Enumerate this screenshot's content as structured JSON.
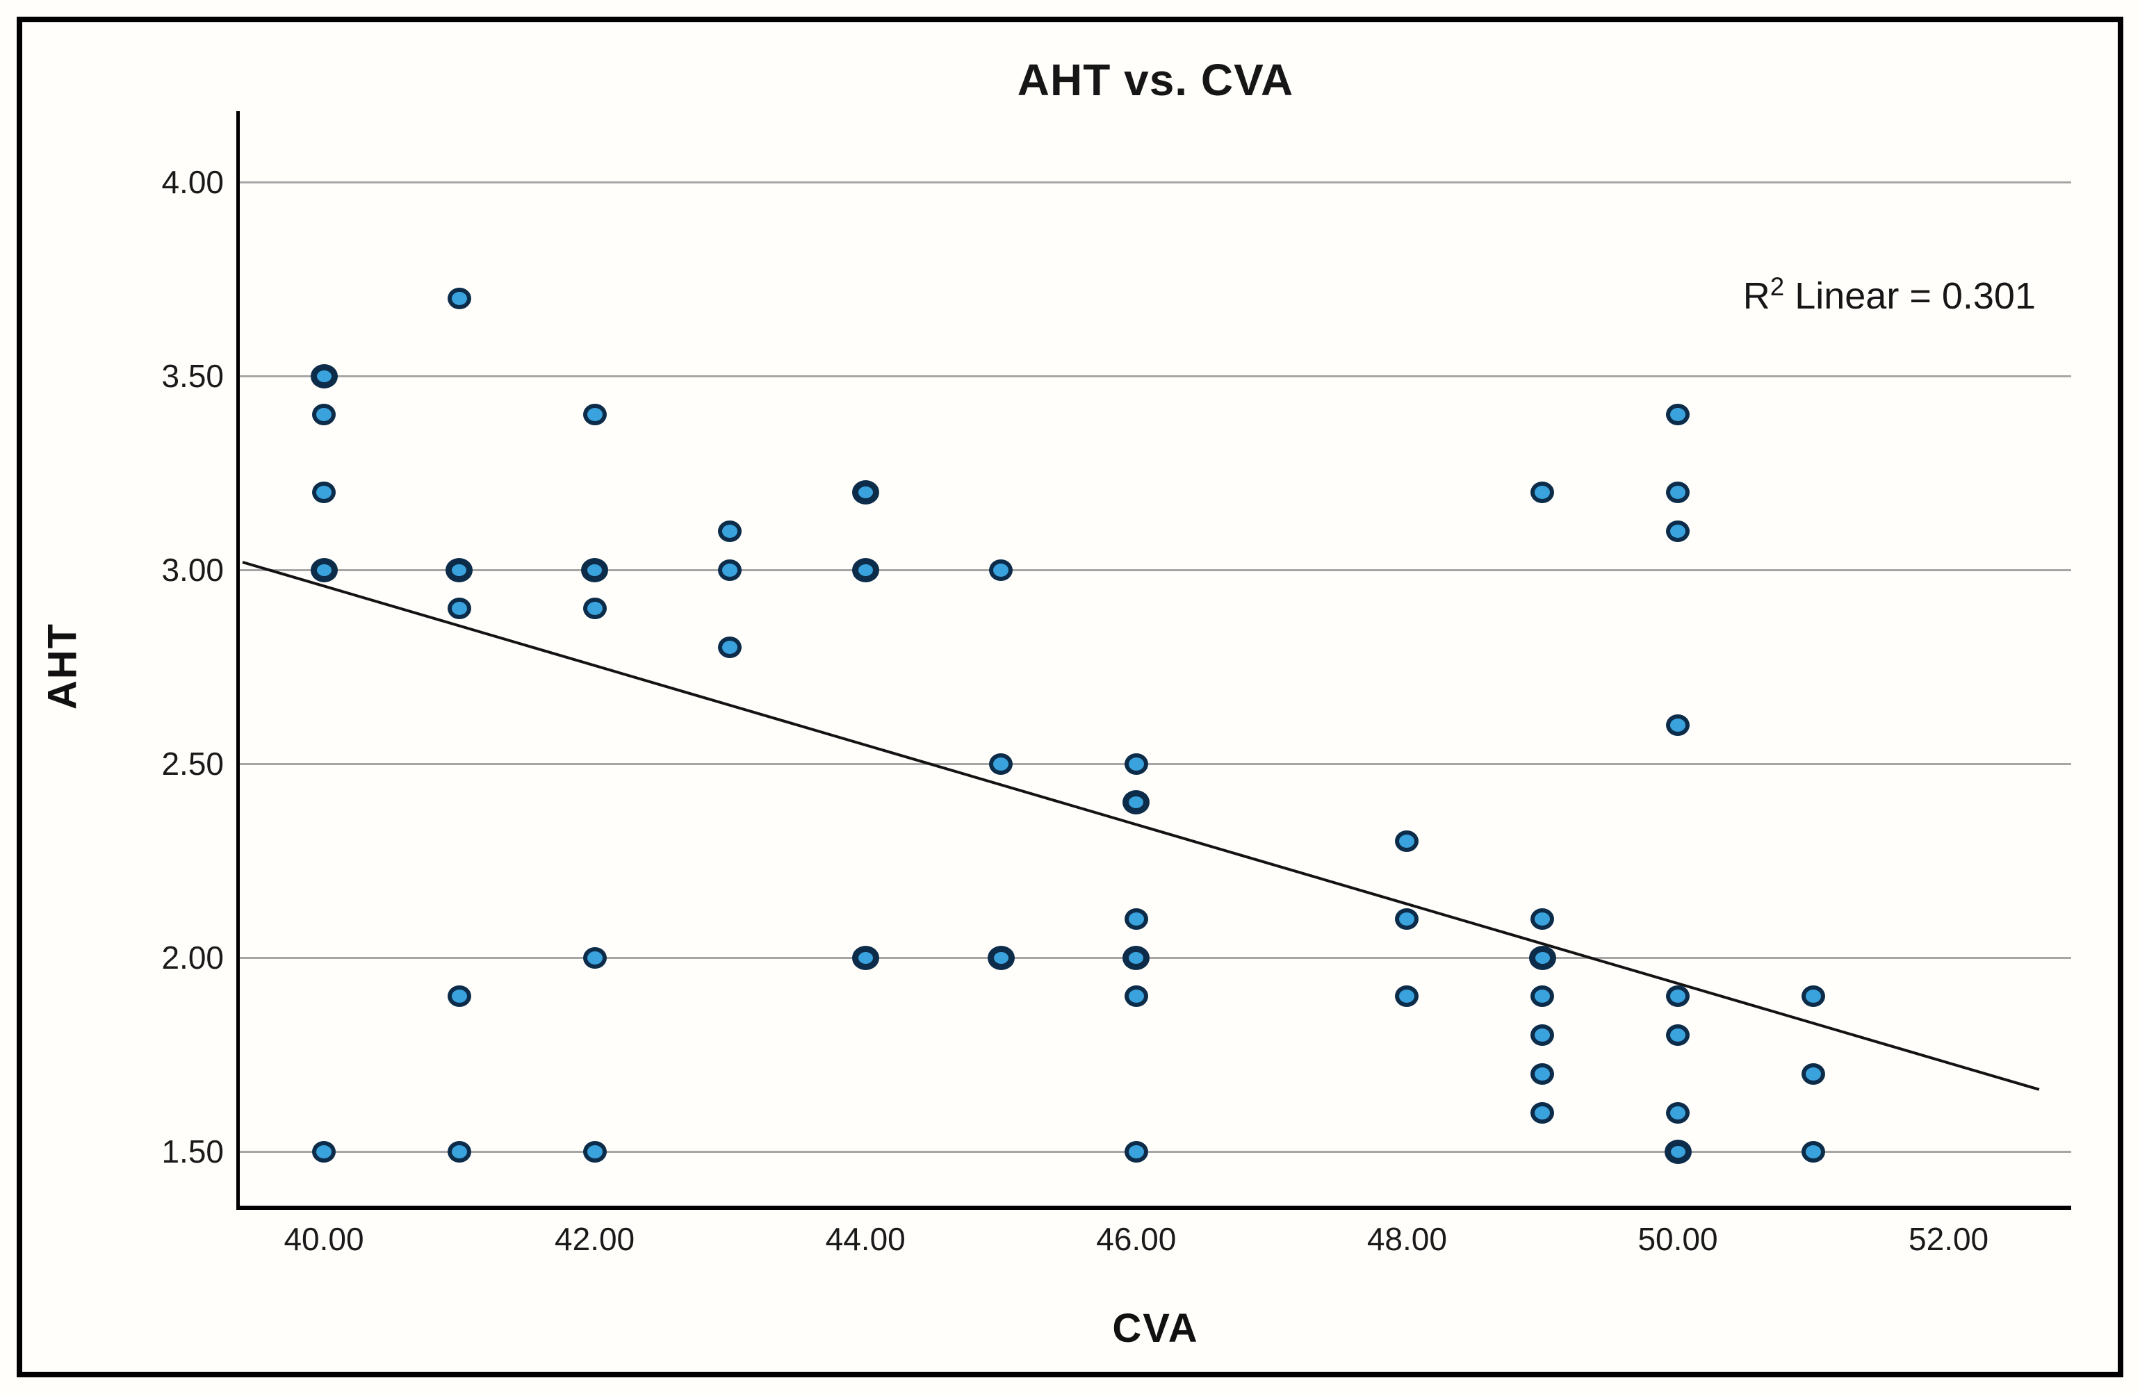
{
  "figure": {
    "title": "AHT vs. CVA",
    "annotation": {
      "base": "R",
      "sup": "2",
      "rest": " Linear = 0.301"
    }
  },
  "axes": {
    "x": {
      "label": "CVA",
      "ticks": [
        {
          "value": 40,
          "label": "40.00"
        },
        {
          "value": 42,
          "label": "42.00"
        },
        {
          "value": 44,
          "label": "44.00"
        },
        {
          "value": 46,
          "label": "46.00"
        },
        {
          "value": 48,
          "label": "48.00"
        },
        {
          "value": 50,
          "label": "50.00"
        },
        {
          "value": 52,
          "label": "52.00"
        }
      ]
    },
    "y": {
      "label": "AHT",
      "ticks": [
        {
          "value": 4.0,
          "label": "4.00"
        },
        {
          "value": 3.5,
          "label": "3.50"
        },
        {
          "value": 3.0,
          "label": "3.00"
        },
        {
          "value": 2.5,
          "label": "2.50"
        },
        {
          "value": 2.0,
          "label": "2.00"
        },
        {
          "value": 1.5,
          "label": "1.50"
        }
      ]
    }
  },
  "chart_data": {
    "type": "scatter",
    "title": "AHT vs. CVA",
    "xlabel": "CVA",
    "ylabel": "AHT",
    "xlim": [
      39.38,
      52.9
    ],
    "ylim": [
      1.36,
      4.18
    ],
    "x_ticks": [
      40,
      42,
      44,
      46,
      48,
      50,
      52
    ],
    "y_ticks": [
      1.5,
      2.0,
      2.5,
      3.0,
      3.5,
      4.0
    ],
    "grid": true,
    "legend_position": "none",
    "r_squared_linear": 0.301,
    "marker_fill": "#3aa2dd",
    "marker_stroke": "#0d2c49",
    "regression_line": {
      "x1": 39.4,
      "y1": 3.02,
      "x2": 52.67,
      "y2": 1.66
    },
    "points": [
      {
        "x": 40,
        "y": 3.5,
        "bold": true
      },
      {
        "x": 40,
        "y": 3.4,
        "bold": false
      },
      {
        "x": 40,
        "y": 3.2,
        "bold": false
      },
      {
        "x": 40,
        "y": 3.0,
        "bold": true
      },
      {
        "x": 40,
        "y": 1.5,
        "bold": false
      },
      {
        "x": 41,
        "y": 3.7,
        "bold": false
      },
      {
        "x": 41,
        "y": 3.0,
        "bold": true
      },
      {
        "x": 41,
        "y": 2.9,
        "bold": false
      },
      {
        "x": 41,
        "y": 1.9,
        "bold": false
      },
      {
        "x": 41,
        "y": 1.5,
        "bold": false
      },
      {
        "x": 42,
        "y": 3.4,
        "bold": false
      },
      {
        "x": 42,
        "y": 3.0,
        "bold": true
      },
      {
        "x": 42,
        "y": 2.9,
        "bold": false
      },
      {
        "x": 42,
        "y": 2.0,
        "bold": false
      },
      {
        "x": 42,
        "y": 1.5,
        "bold": false
      },
      {
        "x": 43,
        "y": 3.1,
        "bold": false
      },
      {
        "x": 43,
        "y": 3.0,
        "bold": false
      },
      {
        "x": 43,
        "y": 2.8,
        "bold": false
      },
      {
        "x": 44,
        "y": 3.2,
        "bold": true
      },
      {
        "x": 44,
        "y": 3.0,
        "bold": true
      },
      {
        "x": 44,
        "y": 2.0,
        "bold": true
      },
      {
        "x": 45,
        "y": 3.0,
        "bold": false
      },
      {
        "x": 45,
        "y": 2.5,
        "bold": false
      },
      {
        "x": 45,
        "y": 2.0,
        "bold": true
      },
      {
        "x": 46,
        "y": 2.5,
        "bold": false
      },
      {
        "x": 46,
        "y": 2.4,
        "bold": true
      },
      {
        "x": 46,
        "y": 2.1,
        "bold": false
      },
      {
        "x": 46,
        "y": 2.0,
        "bold": true
      },
      {
        "x": 46,
        "y": 1.9,
        "bold": false
      },
      {
        "x": 46,
        "y": 1.5,
        "bold": false
      },
      {
        "x": 48,
        "y": 2.3,
        "bold": false
      },
      {
        "x": 48,
        "y": 2.1,
        "bold": false
      },
      {
        "x": 48,
        "y": 1.9,
        "bold": false
      },
      {
        "x": 49,
        "y": 3.2,
        "bold": false
      },
      {
        "x": 49,
        "y": 2.1,
        "bold": false
      },
      {
        "x": 49,
        "y": 2.0,
        "bold": true
      },
      {
        "x": 49,
        "y": 1.9,
        "bold": false
      },
      {
        "x": 49,
        "y": 1.8,
        "bold": false
      },
      {
        "x": 49,
        "y": 1.7,
        "bold": false
      },
      {
        "x": 49,
        "y": 1.6,
        "bold": false
      },
      {
        "x": 50,
        "y": 3.4,
        "bold": false
      },
      {
        "x": 50,
        "y": 3.2,
        "bold": false
      },
      {
        "x": 50,
        "y": 3.1,
        "bold": false
      },
      {
        "x": 50,
        "y": 2.6,
        "bold": false
      },
      {
        "x": 50,
        "y": 1.9,
        "bold": false
      },
      {
        "x": 50,
        "y": 1.8,
        "bold": false
      },
      {
        "x": 50,
        "y": 1.6,
        "bold": false
      },
      {
        "x": 50,
        "y": 1.5,
        "bold": true
      },
      {
        "x": 51,
        "y": 1.9,
        "bold": false
      },
      {
        "x": 51,
        "y": 1.7,
        "bold": false
      },
      {
        "x": 51,
        "y": 1.5,
        "bold": false
      }
    ]
  }
}
